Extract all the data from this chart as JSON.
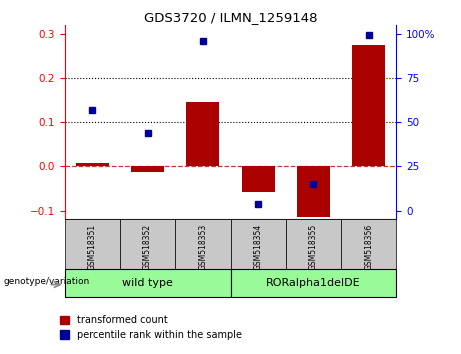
{
  "title": "GDS3720 / ILMN_1259148",
  "samples": [
    "GSM518351",
    "GSM518352",
    "GSM518353",
    "GSM518354",
    "GSM518355",
    "GSM518356"
  ],
  "red_values": [
    0.008,
    -0.013,
    0.145,
    -0.057,
    -0.115,
    0.275
  ],
  "blue_percentile": [
    57,
    44,
    96,
    4,
    15,
    99
  ],
  "ylim_left": [
    -0.12,
    0.32
  ],
  "ylim_right": [
    -8.0,
    133.3
  ],
  "yticks_left": [
    -0.1,
    0.0,
    0.1,
    0.2,
    0.3
  ],
  "yticks_right": [
    0,
    25,
    50,
    75,
    100
  ],
  "hline_y": [
    0.1,
    0.2
  ],
  "dashed_hline_y": 0.0,
  "group1_label": "wild type",
  "group2_label": "RORalpha1delDE",
  "group_color": "#98FB98",
  "sample_bg_color": "#c8c8c8",
  "bar_color_red": "#AA0000",
  "dot_color_blue": "#000099",
  "legend1": "transformed count",
  "legend2": "percentile rank within the sample",
  "xlabel_left": "genotype/variation",
  "bar_width": 0.6
}
